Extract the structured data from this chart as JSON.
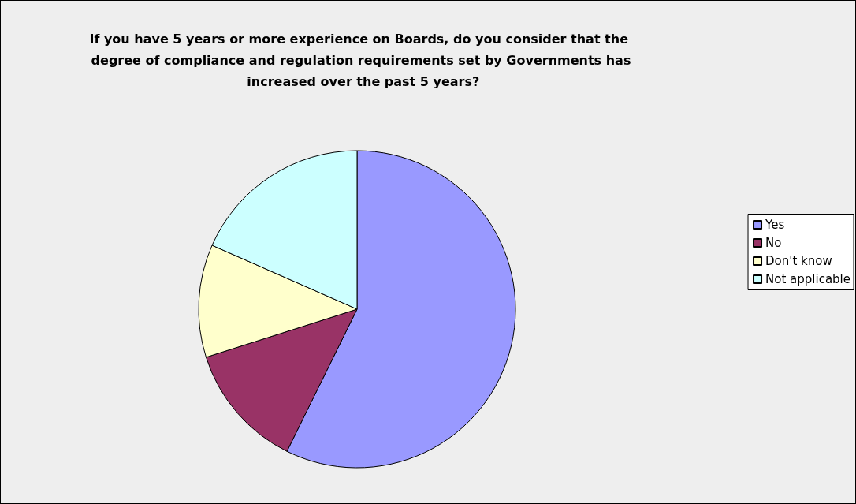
{
  "chart_data": {
    "type": "pie",
    "title": "If you have 5 years or more experience on Boards, do you consider that the degree of compliance and regulation requirements set by Governments has increased over the past 5 years?",
    "categories": [
      "Yes",
      "No",
      "Don't know",
      "Not applicable"
    ],
    "values": [
      57.3,
      12.8,
      11.5,
      18.4
    ],
    "colors": [
      "#9999ff",
      "#993366",
      "#ffffcc",
      "#ccffff"
    ],
    "legend": "right"
  }
}
